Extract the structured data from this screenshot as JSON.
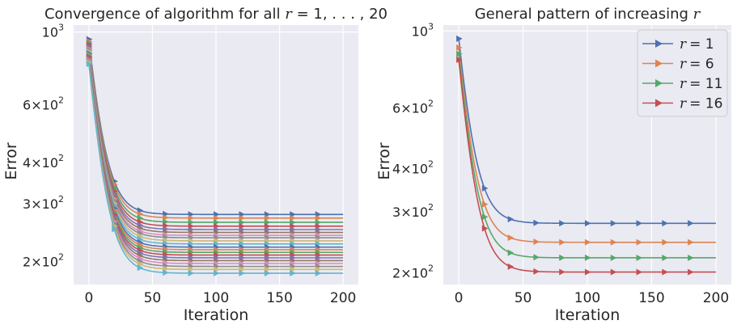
{
  "chart_data": [
    {
      "type": "line",
      "title": "Convergence of algorithm for all r = 1, ..., 20",
      "title_parts": {
        "prefix": "Convergence of algorithm for all ",
        "var": "r",
        "suffix": " = 1, . . . , 20"
      },
      "xlabel": "Iteration",
      "ylabel": "Error",
      "yscale": "log",
      "xlim": [
        -12,
        212
      ],
      "ylim": [
        170,
        1050
      ],
      "grid": true,
      "legend": "none",
      "xticks": [
        {
          "value": 0,
          "label": "0"
        },
        {
          "value": 50,
          "label": "50"
        },
        {
          "value": 100,
          "label": "100"
        },
        {
          "value": 150,
          "label": "150"
        },
        {
          "value": 200,
          "label": "200"
        }
      ],
      "yticks": [
        {
          "value": 1000,
          "mant": "",
          "exp": "3"
        },
        {
          "value": 600,
          "mant": "6×",
          "exp": "2"
        },
        {
          "value": 400,
          "mant": "4×",
          "exp": "2"
        },
        {
          "value": 300,
          "mant": "3×",
          "exp": "2"
        },
        {
          "value": 200,
          "mant": "2×",
          "exp": "2"
        }
      ],
      "marker_every": 20,
      "n_iterations": 200,
      "series": [
        {
          "r": 1,
          "start": 950,
          "end": 278,
          "color": "#4c72b0"
        },
        {
          "r": 2,
          "start": 935,
          "end": 271,
          "color": "#dd8452"
        },
        {
          "r": 3,
          "start": 925,
          "end": 263,
          "color": "#55a868"
        },
        {
          "r": 4,
          "start": 915,
          "end": 256,
          "color": "#c44e52"
        },
        {
          "r": 5,
          "start": 905,
          "end": 250,
          "color": "#8172b3"
        },
        {
          "r": 6,
          "start": 895,
          "end": 245,
          "color": "#937860"
        },
        {
          "r": 7,
          "start": 887,
          "end": 240,
          "color": "#da8bc3"
        },
        {
          "r": 8,
          "start": 880,
          "end": 236,
          "color": "#8c8c8c"
        },
        {
          "r": 9,
          "start": 872,
          "end": 231,
          "color": "#ccb974"
        },
        {
          "r": 10,
          "start": 865,
          "end": 226,
          "color": "#64b5cd"
        },
        {
          "r": 11,
          "start": 858,
          "end": 221,
          "color": "#4c72b0"
        },
        {
          "r": 12,
          "start": 852,
          "end": 217,
          "color": "#dd8452"
        },
        {
          "r": 13,
          "start": 845,
          "end": 213,
          "color": "#55a868"
        },
        {
          "r": 14,
          "start": 838,
          "end": 209,
          "color": "#c44e52"
        },
        {
          "r": 15,
          "start": 832,
          "end": 205,
          "color": "#8172b3"
        },
        {
          "r": 16,
          "start": 826,
          "end": 201,
          "color": "#937860"
        },
        {
          "r": 17,
          "start": 820,
          "end": 197,
          "color": "#da8bc3"
        },
        {
          "r": 18,
          "start": 814,
          "end": 193,
          "color": "#8c8c8c"
        },
        {
          "r": 19,
          "start": 808,
          "end": 189,
          "color": "#ccb974"
        },
        {
          "r": 20,
          "start": 800,
          "end": 184,
          "color": "#64b5cd"
        }
      ]
    },
    {
      "type": "line",
      "title": "General pattern of increasing r",
      "title_parts": {
        "prefix": "General pattern of increasing ",
        "var": "r",
        "suffix": ""
      },
      "xlabel": "Iteration",
      "ylabel": "Error",
      "yscale": "log",
      "xlim": [
        -12,
        212
      ],
      "ylim": [
        185,
        1040
      ],
      "grid": true,
      "legend": "top-right",
      "xticks": [
        {
          "value": 0,
          "label": "0"
        },
        {
          "value": 50,
          "label": "50"
        },
        {
          "value": 100,
          "label": "100"
        },
        {
          "value": 150,
          "label": "150"
        },
        {
          "value": 200,
          "label": "200"
        }
      ],
      "yticks": [
        {
          "value": 1000,
          "mant": "",
          "exp": "3"
        },
        {
          "value": 600,
          "mant": "6×",
          "exp": "2"
        },
        {
          "value": 400,
          "mant": "4×",
          "exp": "2"
        },
        {
          "value": 300,
          "mant": "3×",
          "exp": "2"
        },
        {
          "value": 200,
          "mant": "2×",
          "exp": "2"
        }
      ],
      "marker_every": 20,
      "n_iterations": 200,
      "series": [
        {
          "name": "r = 1",
          "name_var": "r",
          "name_value": "= 1",
          "start": 950,
          "end": 278,
          "color": "#4c72b0"
        },
        {
          "name": "r = 6",
          "name_var": "r",
          "name_value": "= 6",
          "start": 895,
          "end": 245,
          "color": "#dd8452"
        },
        {
          "name": "r = 11",
          "name_var": "r",
          "name_value": "= 11",
          "start": 858,
          "end": 221,
          "color": "#55a868"
        },
        {
          "name": "r = 16",
          "name_var": "r",
          "name_value": "= 16",
          "start": 826,
          "end": 201,
          "color": "#c44e52"
        }
      ]
    }
  ]
}
